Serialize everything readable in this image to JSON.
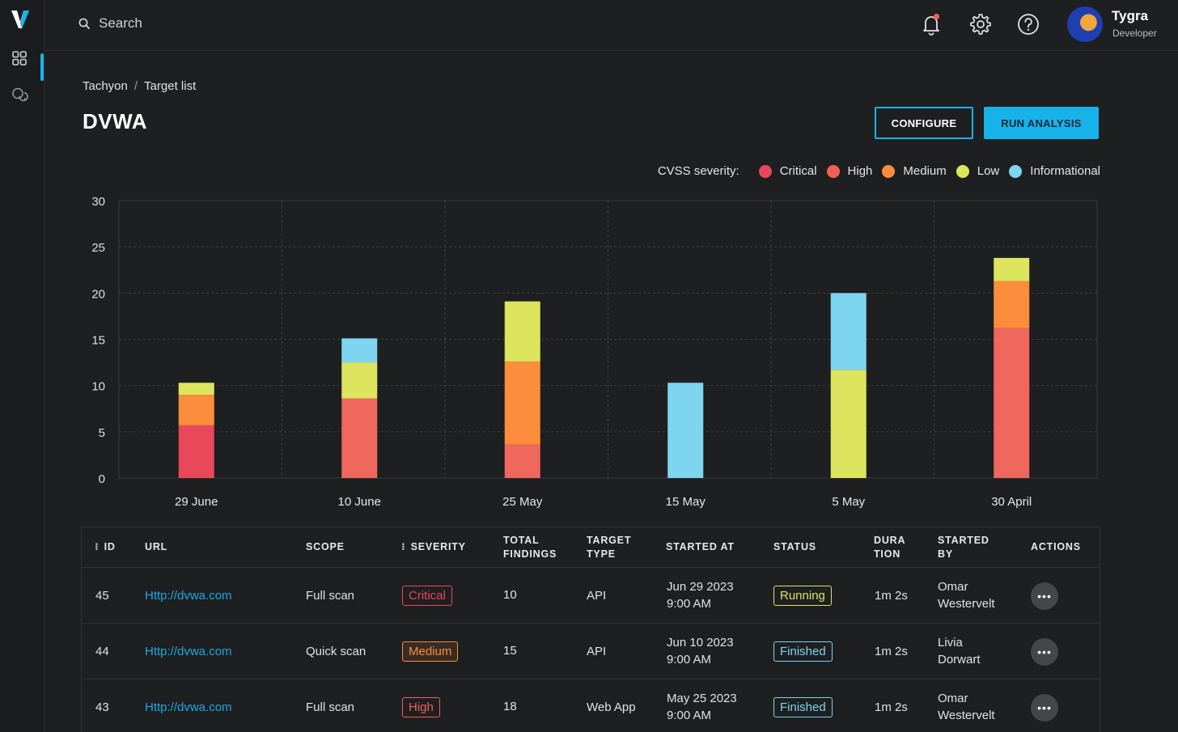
{
  "app": {
    "logo_text": "V"
  },
  "search": {
    "placeholder": "Search"
  },
  "user": {
    "name": "Tygra",
    "role": "Developer"
  },
  "breadcrumb": {
    "root": "Tachyon",
    "separator": "/",
    "current": "Target list"
  },
  "page": {
    "title": "DVWA"
  },
  "buttons": {
    "configure": "CONFIGURE",
    "run": "RUN ANALYSIS"
  },
  "legend": {
    "title": "CVSS severity:",
    "items": [
      {
        "label": "Critical",
        "color": "#e8485a"
      },
      {
        "label": "High",
        "color": "#f05f55"
      },
      {
        "label": "Medium",
        "color": "#fb8d3d"
      },
      {
        "label": "Low",
        "color": "#dde45e"
      },
      {
        "label": "Informational",
        "color": "#7dd5f0"
      }
    ]
  },
  "chart_data": {
    "type": "bar",
    "stacked": true,
    "categories": [
      "29 June",
      "10 June",
      "25 May",
      "15 May",
      "5 May",
      "30 April"
    ],
    "series": [
      {
        "name": "Critical",
        "color": "#e8485a",
        "values": [
          5.7,
          0,
          0,
          0,
          0,
          0
        ]
      },
      {
        "name": "High",
        "color": "#f0675d",
        "values": [
          0,
          8.6,
          3.6,
          0,
          0,
          16.2
        ]
      },
      {
        "name": "Medium",
        "color": "#fb8d3d",
        "values": [
          3.3,
          0,
          9.0,
          0,
          0,
          5.1
        ]
      },
      {
        "name": "Low",
        "color": "#dde45e",
        "values": [
          1.3,
          3.9,
          6.5,
          0,
          11.7,
          2.5
        ]
      },
      {
        "name": "Informational",
        "color": "#7dd5f0",
        "values": [
          0,
          2.6,
          0,
          10.3,
          8.3,
          0
        ]
      }
    ],
    "ylim": [
      0,
      30
    ],
    "yticks": [
      "0",
      "5",
      "10",
      "15",
      "20",
      "25",
      "30"
    ],
    "grid": true,
    "legend_position": "top-right"
  },
  "table": {
    "headers": {
      "id": "ID",
      "url": "URL",
      "scope": "SCOPE",
      "severity": "SEVERITY",
      "findings_1": "TOTAL",
      "findings_2": "FINDINGS",
      "target_1": "TARGET",
      "target_2": "TYPE",
      "started_at": "STARTED AT",
      "status": "STATUS",
      "duration_1": "DURA",
      "duration_2": "TION",
      "started_by_1": "STARTED",
      "started_by_2": "BY",
      "actions": "ACTIONS"
    },
    "rows": [
      {
        "id": "45",
        "url": "Http://dvwa.com",
        "scope": "Full scan",
        "severity": "Critical",
        "findings": "10",
        "target": "API",
        "date": "Jun 29 2023",
        "time": "9:00 AM",
        "status": "Running",
        "duration": "1m 2s",
        "by_first": "Omar",
        "by_last": "Westervelt",
        "action": "•••"
      },
      {
        "id": "44",
        "url": "Http://dvwa.com",
        "scope": "Quick scan",
        "severity": "Medium",
        "findings": "15",
        "target": "API",
        "date": "Jun 10 2023",
        "time": "9:00 AM",
        "status": "Finished",
        "duration": "1m 2s",
        "by_first": "Livia",
        "by_last": "Dorwart",
        "action": "•••"
      },
      {
        "id": "43",
        "url": "Http://dvwa.com",
        "scope": "Full scan",
        "severity": "High",
        "findings": "18",
        "target": "Web App",
        "date": "May 25 2023",
        "time": "9:00 AM",
        "status": "Finished",
        "duration": "1m 2s",
        "by_first": "Omar",
        "by_last": "Westervelt",
        "action": "•••"
      }
    ]
  },
  "colors": {
    "accent": "#19b3ec",
    "severity_critical": "#e8485a",
    "severity_medium": "#fb8d3d",
    "severity_high": "#f05f55",
    "status_running": "#dde45e",
    "status_finished": "#7dd5f0"
  },
  "icons": {
    "rail": [
      "dashboard-grid-icon",
      "chat-icon"
    ],
    "top": [
      "search-icon",
      "bell-icon",
      "gear-icon",
      "help-icon"
    ]
  }
}
